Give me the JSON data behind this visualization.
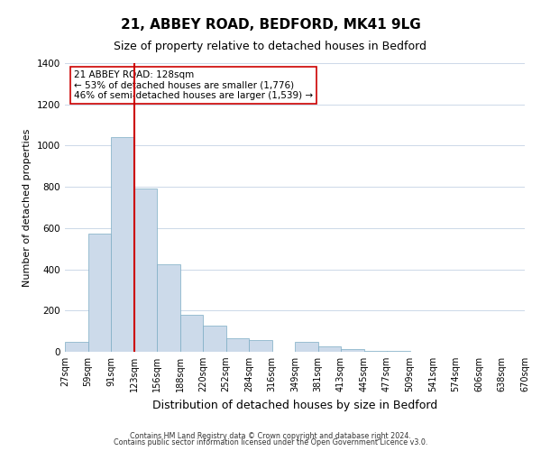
{
  "title": "21, ABBEY ROAD, BEDFORD, MK41 9LG",
  "subtitle": "Size of property relative to detached houses in Bedford",
  "xlabel": "Distribution of detached houses by size in Bedford",
  "ylabel": "Number of detached properties",
  "bar_color": "#ccdaea",
  "bar_edge_color": "#7bacc4",
  "vline_color": "#cc0000",
  "vline_x": 3,
  "annotation_title": "21 ABBEY ROAD: 128sqm",
  "annotation_line1": "← 53% of detached houses are smaller (1,776)",
  "annotation_line2": "46% of semi-detached houses are larger (1,539) →",
  "bins": [
    "27sqm",
    "59sqm",
    "91sqm",
    "123sqm",
    "156sqm",
    "188sqm",
    "220sqm",
    "252sqm",
    "284sqm",
    "316sqm",
    "349sqm",
    "381sqm",
    "413sqm",
    "445sqm",
    "477sqm",
    "509sqm",
    "541sqm",
    "574sqm",
    "606sqm",
    "638sqm",
    "670sqm"
  ],
  "values": [
    50,
    575,
    1040,
    790,
    425,
    180,
    125,
    65,
    55,
    0,
    50,
    25,
    15,
    5,
    5,
    0,
    0,
    0,
    0,
    0
  ],
  "ylim": [
    0,
    1400
  ],
  "yticks": [
    0,
    200,
    400,
    600,
    800,
    1000,
    1200,
    1400
  ],
  "footnote1": "Contains HM Land Registry data © Crown copyright and database right 2024.",
  "footnote2": "Contains public sector information licensed under the Open Government Licence v3.0.",
  "background_color": "#ffffff",
  "grid_color": "#ccd8e8",
  "title_fontsize": 11,
  "subtitle_fontsize": 9,
  "ylabel_fontsize": 8,
  "xlabel_fontsize": 9,
  "tick_fontsize": 7,
  "annotation_fontsize": 7.5
}
